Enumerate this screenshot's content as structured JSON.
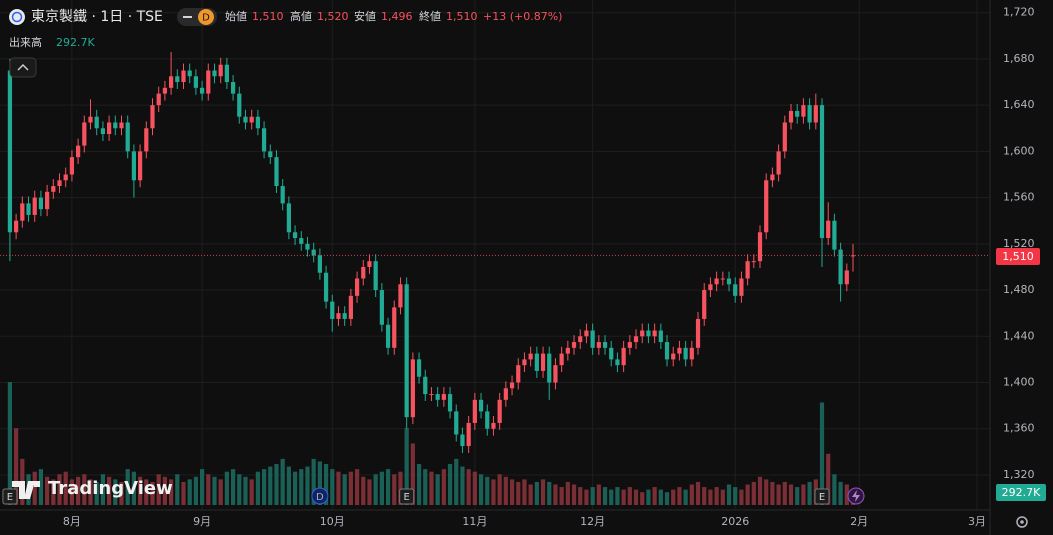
{
  "chart_data": {
    "type": "candlestick",
    "title": "東京製鐵 · 1日 · TSE",
    "interval_badge": "D",
    "legend": [
      {
        "label": "始値",
        "value_label": "1,510"
      },
      {
        "label": "高値",
        "value_label": "1,520"
      },
      {
        "label": "安値",
        "value_label": "1,496"
      },
      {
        "label": "終値",
        "value_label": "1,510"
      }
    ],
    "change_label": "+13 (+0.87%)",
    "volume_title": "出来高",
    "volume_label": "292.7K",
    "last_price_label": "1,510",
    "logo": "TradingView",
    "up_color": "#f7525f",
    "down_color": "#22ab94",
    "volume_up_color": "#7a2e35",
    "volume_down_color": "#1b6057",
    "grid": true,
    "xlim": [
      -1.6,
      158.1
    ],
    "xticks": [
      {
        "value": 10,
        "label": "8月"
      },
      {
        "value": 31,
        "label": "9月"
      },
      {
        "value": 52,
        "label": "10月"
      },
      {
        "value": 75,
        "label": "11月"
      },
      {
        "value": 94,
        "label": "12月"
      },
      {
        "value": 117,
        "label": "2026"
      },
      {
        "value": 137,
        "label": "2月"
      },
      {
        "value": 156,
        "label": "3月"
      }
    ],
    "ylim": [
      1294,
      1731
    ],
    "yticks": [
      {
        "value": 1320,
        "label": "1,320"
      },
      {
        "value": 1360,
        "label": "1,360"
      },
      {
        "value": 1400,
        "label": "1,400"
      },
      {
        "value": 1440,
        "label": "1,440"
      },
      {
        "value": 1480,
        "label": "1,480"
      },
      {
        "value": 1520,
        "label": "1,520"
      },
      {
        "value": 1560,
        "label": "1,560"
      },
      {
        "value": 1600,
        "label": "1,600"
      },
      {
        "value": 1640,
        "label": "1,640"
      },
      {
        "value": 1680,
        "label": "1,680"
      },
      {
        "value": 1720,
        "label": "1,720"
      }
    ],
    "volume_lim": [
      0,
      4000000
    ],
    "events": [
      {
        "index": 0,
        "label": "E"
      },
      {
        "index": 50,
        "label": "D"
      },
      {
        "index": 64,
        "label": "E"
      },
      {
        "index": 131,
        "label": "E"
      }
    ],
    "open": [
      1670,
      1530,
      1540,
      1555,
      1545,
      1560,
      1550,
      1565,
      1570,
      1575,
      1580,
      1595,
      1605,
      1625,
      1630,
      1620,
      1615,
      1625,
      1620,
      1625,
      1600,
      1575,
      1600,
      1620,
      1640,
      1650,
      1655,
      1665,
      1660,
      1670,
      1665,
      1655,
      1650,
      1670,
      1665,
      1675,
      1660,
      1650,
      1630,
      1625,
      1630,
      1620,
      1600,
      1595,
      1570,
      1555,
      1530,
      1525,
      1520,
      1515,
      1510,
      1495,
      1470,
      1455,
      1460,
      1455,
      1475,
      1490,
      1500,
      1505,
      1480,
      1450,
      1430,
      1465,
      1485,
      1370,
      1420,
      1405,
      1390,
      1390,
      1385,
      1390,
      1375,
      1355,
      1345,
      1365,
      1385,
      1375,
      1360,
      1365,
      1385,
      1395,
      1400,
      1415,
      1420,
      1425,
      1410,
      1425,
      1400,
      1415,
      1425,
      1430,
      1435,
      1440,
      1445,
      1430,
      1435,
      1430,
      1420,
      1415,
      1430,
      1435,
      1440,
      1445,
      1440,
      1445,
      1435,
      1420,
      1425,
      1430,
      1420,
      1430,
      1455,
      1480,
      1485,
      1490,
      1490,
      1485,
      1475,
      1490,
      1505,
      1505,
      1530,
      1575,
      1580,
      1600,
      1625,
      1635,
      1630,
      1640,
      1625,
      1640,
      1525,
      1540,
      1515,
      1485,
      1510
    ],
    "high": [
      1680,
      1546,
      1561,
      1561,
      1566,
      1566,
      1571,
      1576,
      1581,
      1586,
      1601,
      1611,
      1631,
      1645,
      1636,
      1626,
      1631,
      1631,
      1631,
      1631,
      1606,
      1606,
      1626,
      1646,
      1656,
      1661,
      1686,
      1671,
      1676,
      1676,
      1671,
      1661,
      1676,
      1676,
      1681,
      1681,
      1666,
      1656,
      1636,
      1636,
      1636,
      1626,
      1606,
      1601,
      1576,
      1561,
      1536,
      1531,
      1526,
      1521,
      1516,
      1501,
      1476,
      1466,
      1466,
      1481,
      1496,
      1506,
      1511,
      1511,
      1486,
      1456,
      1471,
      1491,
      1491,
      1426,
      1426,
      1411,
      1396,
      1396,
      1396,
      1396,
      1381,
      1361,
      1371,
      1391,
      1391,
      1381,
      1371,
      1391,
      1401,
      1406,
      1421,
      1426,
      1431,
      1431,
      1431,
      1431,
      1421,
      1431,
      1436,
      1441,
      1446,
      1451,
      1451,
      1441,
      1441,
      1436,
      1426,
      1436,
      1441,
      1446,
      1451,
      1451,
      1451,
      1451,
      1441,
      1431,
      1436,
      1436,
      1436,
      1461,
      1486,
      1491,
      1496,
      1496,
      1496,
      1491,
      1496,
      1511,
      1511,
      1536,
      1581,
      1586,
      1606,
      1631,
      1641,
      1641,
      1646,
      1646,
      1650,
      1646,
      1556,
      1546,
      1521,
      1503,
      1520
    ],
    "low": [
      1505,
      1524,
      1534,
      1539,
      1539,
      1544,
      1544,
      1559,
      1564,
      1569,
      1574,
      1589,
      1599,
      1619,
      1614,
      1609,
      1609,
      1614,
      1614,
      1594,
      1560,
      1569,
      1594,
      1614,
      1634,
      1644,
      1649,
      1654,
      1654,
      1659,
      1649,
      1644,
      1644,
      1659,
      1659,
      1654,
      1644,
      1624,
      1619,
      1619,
      1614,
      1594,
      1589,
      1564,
      1549,
      1524,
      1519,
      1514,
      1509,
      1504,
      1489,
      1464,
      1444,
      1449,
      1449,
      1449,
      1469,
      1484,
      1494,
      1474,
      1444,
      1424,
      1424,
      1459,
      1360,
      1364,
      1399,
      1384,
      1384,
      1379,
      1379,
      1369,
      1349,
      1339,
      1339,
      1359,
      1369,
      1354,
      1354,
      1359,
      1379,
      1389,
      1394,
      1409,
      1414,
      1404,
      1404,
      1385,
      1394,
      1409,
      1419,
      1424,
      1429,
      1434,
      1424,
      1424,
      1424,
      1414,
      1409,
      1409,
      1424,
      1429,
      1434,
      1434,
      1434,
      1429,
      1414,
      1414,
      1419,
      1414,
      1414,
      1424,
      1449,
      1474,
      1479,
      1484,
      1479,
      1469,
      1469,
      1484,
      1499,
      1499,
      1524,
      1569,
      1574,
      1594,
      1619,
      1624,
      1624,
      1619,
      1619,
      1500,
      1519,
      1509,
      1470,
      1479,
      1496
    ],
    "close": [
      1530,
      1540,
      1555,
      1545,
      1560,
      1550,
      1565,
      1570,
      1575,
      1580,
      1595,
      1605,
      1625,
      1630,
      1620,
      1615,
      1625,
      1620,
      1625,
      1600,
      1575,
      1600,
      1620,
      1640,
      1650,
      1655,
      1665,
      1660,
      1670,
      1665,
      1655,
      1650,
      1670,
      1665,
      1675,
      1660,
      1650,
      1630,
      1625,
      1630,
      1620,
      1600,
      1595,
      1570,
      1555,
      1530,
      1525,
      1520,
      1515,
      1510,
      1495,
      1470,
      1455,
      1460,
      1455,
      1475,
      1490,
      1500,
      1505,
      1480,
      1450,
      1430,
      1465,
      1485,
      1370,
      1420,
      1405,
      1390,
      1390,
      1385,
      1390,
      1375,
      1355,
      1345,
      1365,
      1385,
      1375,
      1360,
      1365,
      1385,
      1395,
      1400,
      1415,
      1420,
      1425,
      1410,
      1425,
      1400,
      1415,
      1425,
      1430,
      1435,
      1440,
      1445,
      1430,
      1435,
      1430,
      1420,
      1415,
      1430,
      1435,
      1440,
      1445,
      1440,
      1445,
      1435,
      1420,
      1425,
      1430,
      1420,
      1430,
      1455,
      1480,
      1485,
      1490,
      1490,
      1485,
      1475,
      1490,
      1505,
      1505,
      1530,
      1575,
      1580,
      1600,
      1625,
      1635,
      1630,
      1640,
      1625,
      1640,
      1525,
      1540,
      1515,
      1485,
      1497,
      1510
    ],
    "volume": [
      2400000,
      1500000,
      900000,
      600000,
      650000,
      700000,
      550000,
      500000,
      600000,
      650000,
      500000,
      550000,
      600000,
      500000,
      450000,
      600000,
      550000,
      500000,
      450000,
      700000,
      650000,
      550000,
      500000,
      450000,
      600000,
      550000,
      500000,
      600000,
      450000,
      500000,
      550000,
      700000,
      600000,
      550000,
      500000,
      650000,
      700000,
      600000,
      550000,
      500000,
      650000,
      700000,
      750000,
      800000,
      900000,
      750000,
      650000,
      700000,
      750000,
      900000,
      850000,
      800000,
      700000,
      650000,
      600000,
      650000,
      700000,
      550000,
      500000,
      600000,
      650000,
      700000,
      600000,
      650000,
      1500000,
      1200000,
      800000,
      700000,
      650000,
      600000,
      700000,
      800000,
      900000,
      750000,
      700000,
      650000,
      600000,
      550000,
      500000,
      600000,
      550000,
      500000,
      450000,
      500000,
      400000,
      450000,
      500000,
      450000,
      400000,
      350000,
      450000,
      400000,
      350000,
      300000,
      350000,
      400000,
      350000,
      300000,
      350000,
      300000,
      350000,
      300000,
      250000,
      300000,
      350000,
      300000,
      250000,
      300000,
      350000,
      300000,
      400000,
      450000,
      350000,
      300000,
      350000,
      300000,
      400000,
      350000,
      300000,
      400000,
      450000,
      550000,
      500000,
      450000,
      400000,
      450000,
      400000,
      350000,
      400000,
      450000,
      500000,
      2000000,
      1000000,
      600000,
      450000,
      400000,
      292700
    ]
  }
}
